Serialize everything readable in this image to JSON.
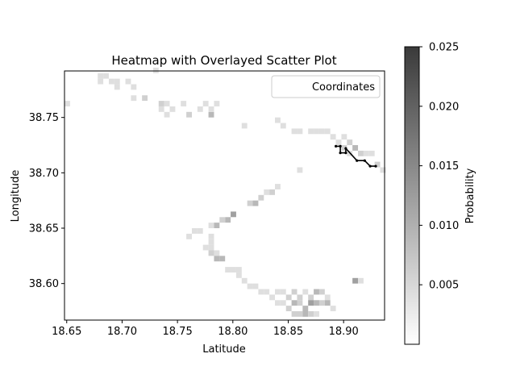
{
  "chart_data": {
    "type": "heatmap",
    "title": "Heatmap with Overlayed Scatter Plot",
    "xlabel": "Latitude",
    "ylabel": "Longitude",
    "xlim": [
      18.648,
      18.937
    ],
    "ylim": [
      38.567,
      38.792
    ],
    "xticks": [
      {
        "value": 18.65,
        "label": "18.65"
      },
      {
        "value": 18.7,
        "label": "18.70"
      },
      {
        "value": 18.75,
        "label": "18.75"
      },
      {
        "value": 18.8,
        "label": "18.80"
      },
      {
        "value": 18.85,
        "label": "18.85"
      },
      {
        "value": 18.9,
        "label": "18.90"
      }
    ],
    "yticks": [
      {
        "value": 38.6,
        "label": "38.60"
      },
      {
        "value": 38.65,
        "label": "38.65"
      },
      {
        "value": 38.7,
        "label": "38.70"
      },
      {
        "value": 38.75,
        "label": "38.75"
      }
    ],
    "legend": {
      "label": "Coordinates",
      "position": "upper right"
    },
    "colorbar": {
      "label": "Probability",
      "vmin": 0.0,
      "vmax": 0.025,
      "ticks": [
        {
          "value": 0.005,
          "label": "0.005"
        },
        {
          "value": 0.01,
          "label": "0.010"
        },
        {
          "value": 0.015,
          "label": "0.015"
        },
        {
          "value": 0.02,
          "label": "0.020"
        },
        {
          "value": 0.025,
          "label": "0.025"
        }
      ]
    },
    "cell_size": 0.005,
    "cells": [
      [
        18.648,
        38.76,
        0.004
      ],
      [
        18.678,
        38.785,
        0.004
      ],
      [
        18.678,
        38.78,
        0.004
      ],
      [
        18.683,
        38.785,
        0.004
      ],
      [
        18.688,
        38.78,
        0.004
      ],
      [
        18.693,
        38.78,
        0.004
      ],
      [
        18.693,
        38.775,
        0.004
      ],
      [
        18.703,
        38.78,
        0.004
      ],
      [
        18.708,
        38.775,
        0.004
      ],
      [
        18.708,
        38.765,
        0.004
      ],
      [
        18.718,
        38.765,
        0.006
      ],
      [
        18.728,
        38.79,
        0.004
      ],
      [
        18.733,
        38.76,
        0.006
      ],
      [
        18.733,
        38.755,
        0.004
      ],
      [
        18.738,
        38.76,
        0.004
      ],
      [
        18.738,
        38.75,
        0.004
      ],
      [
        18.743,
        38.755,
        0.004
      ],
      [
        18.753,
        38.76,
        0.004
      ],
      [
        18.758,
        38.75,
        0.006
      ],
      [
        18.768,
        38.755,
        0.004
      ],
      [
        18.773,
        38.76,
        0.004
      ],
      [
        18.778,
        38.75,
        0.009
      ],
      [
        18.778,
        38.755,
        0.004
      ],
      [
        18.783,
        38.76,
        0.004
      ],
      [
        18.808,
        38.74,
        0.004
      ],
      [
        18.838,
        38.745,
        0.004
      ],
      [
        18.843,
        38.74,
        0.004
      ],
      [
        18.853,
        38.735,
        0.004
      ],
      [
        18.858,
        38.735,
        0.004
      ],
      [
        18.868,
        38.735,
        0.004
      ],
      [
        18.873,
        38.735,
        0.004
      ],
      [
        18.878,
        38.735,
        0.004
      ],
      [
        18.883,
        38.735,
        0.004
      ],
      [
        18.888,
        38.73,
        0.004
      ],
      [
        18.893,
        38.725,
        0.004
      ],
      [
        18.898,
        38.73,
        0.004
      ],
      [
        18.898,
        38.72,
        0.006
      ],
      [
        18.903,
        38.725,
        0.006
      ],
      [
        18.903,
        38.715,
        0.004
      ],
      [
        18.908,
        38.72,
        0.009
      ],
      [
        18.913,
        38.715,
        0.006
      ],
      [
        18.918,
        38.715,
        0.004
      ],
      [
        18.923,
        38.715,
        0.004
      ],
      [
        18.928,
        38.705,
        0.006
      ],
      [
        18.933,
        38.7,
        0.004
      ],
      [
        18.858,
        38.7,
        0.004
      ],
      [
        18.838,
        38.685,
        0.004
      ],
      [
        18.833,
        38.68,
        0.006
      ],
      [
        18.828,
        38.68,
        0.004
      ],
      [
        18.823,
        38.675,
        0.006
      ],
      [
        18.818,
        38.67,
        0.009
      ],
      [
        18.813,
        38.67,
        0.006
      ],
      [
        18.798,
        38.66,
        0.012
      ],
      [
        18.793,
        38.655,
        0.009
      ],
      [
        18.788,
        38.655,
        0.006
      ],
      [
        18.783,
        38.65,
        0.009
      ],
      [
        18.778,
        38.65,
        0.004
      ],
      [
        18.768,
        38.645,
        0.004
      ],
      [
        18.763,
        38.645,
        0.004
      ],
      [
        18.758,
        38.64,
        0.004
      ],
      [
        18.778,
        38.64,
        0.004
      ],
      [
        18.778,
        38.635,
        0.004
      ],
      [
        18.778,
        38.63,
        0.004
      ],
      [
        18.773,
        38.63,
        0.004
      ],
      [
        18.783,
        38.625,
        0.004
      ],
      [
        18.778,
        38.625,
        0.006
      ],
      [
        18.783,
        38.62,
        0.009
      ],
      [
        18.788,
        38.62,
        0.009
      ],
      [
        18.793,
        38.61,
        0.004
      ],
      [
        18.798,
        38.61,
        0.004
      ],
      [
        18.803,
        38.61,
        0.004
      ],
      [
        18.803,
        38.605,
        0.004
      ],
      [
        18.808,
        38.6,
        0.004
      ],
      [
        18.813,
        38.595,
        0.004
      ],
      [
        18.818,
        38.595,
        0.004
      ],
      [
        18.823,
        38.59,
        0.004
      ],
      [
        18.828,
        38.59,
        0.004
      ],
      [
        18.833,
        38.585,
        0.004
      ],
      [
        18.838,
        38.59,
        0.004
      ],
      [
        18.843,
        38.59,
        0.004
      ],
      [
        18.848,
        38.585,
        0.006
      ],
      [
        18.853,
        38.59,
        0.006
      ],
      [
        18.858,
        38.585,
        0.006
      ],
      [
        18.863,
        38.59,
        0.004
      ],
      [
        18.868,
        38.585,
        0.006
      ],
      [
        18.873,
        38.59,
        0.009
      ],
      [
        18.878,
        38.59,
        0.006
      ],
      [
        18.883,
        38.585,
        0.004
      ],
      [
        18.838,
        38.58,
        0.004
      ],
      [
        18.843,
        38.58,
        0.004
      ],
      [
        18.848,
        38.575,
        0.006
      ],
      [
        18.853,
        38.58,
        0.009
      ],
      [
        18.858,
        38.58,
        0.006
      ],
      [
        18.863,
        38.575,
        0.009
      ],
      [
        18.868,
        38.58,
        0.012
      ],
      [
        18.873,
        38.58,
        0.009
      ],
      [
        18.878,
        38.58,
        0.006
      ],
      [
        18.883,
        38.58,
        0.009
      ],
      [
        18.888,
        38.575,
        0.004
      ],
      [
        18.853,
        38.57,
        0.006
      ],
      [
        18.858,
        38.57,
        0.006
      ],
      [
        18.863,
        38.57,
        0.009
      ],
      [
        18.868,
        38.57,
        0.006
      ],
      [
        18.873,
        38.57,
        0.004
      ],
      [
        18.908,
        38.6,
        0.012
      ],
      [
        18.913,
        38.6,
        0.004
      ]
    ],
    "path": [
      [
        18.893,
        38.724
      ],
      [
        18.897,
        38.724
      ],
      [
        18.897,
        38.718
      ],
      [
        18.902,
        38.718
      ],
      [
        18.902,
        38.722
      ],
      [
        18.912,
        38.711
      ],
      [
        18.919,
        38.711
      ],
      [
        18.924,
        38.706
      ],
      [
        18.929,
        38.706
      ]
    ]
  }
}
